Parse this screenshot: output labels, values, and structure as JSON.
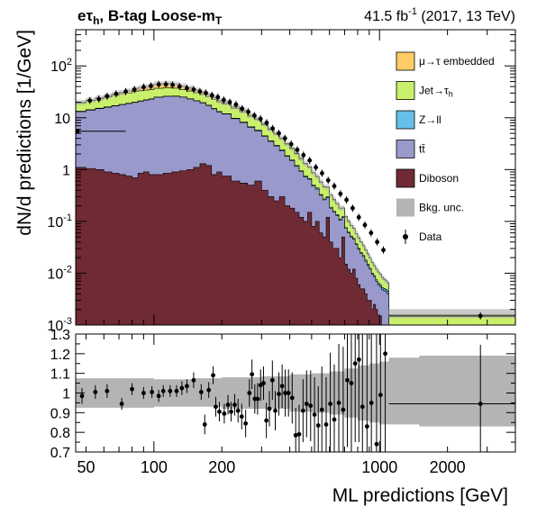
{
  "header": {
    "channel": "eτh, B-tag Loose-mT",
    "channel_main": "e",
    "channel_tau": "τ",
    "channel_tau_sub": "h",
    "channel_rest": ", B-tag Loose-m",
    "channel_rest_sub": "T",
    "lumi": "41.5 fb",
    "lumi_sup": "-1",
    "lumi_rest": " (2017, 13 TeV)"
  },
  "colors": {
    "embedded": "#ffcc66",
    "jetfakes": "#c8f06a",
    "zll": "#64c0e8",
    "ttbar": "#9999cc",
    "diboson": "#6f2a34",
    "unc": "#b4b4b4",
    "data": "#000000"
  },
  "chart_data": [
    {
      "id": "main",
      "type": "area",
      "ylabel": "dN/d predictions [1/GeV]",
      "xscale": "log",
      "yscale": "log",
      "xlim": [
        45,
        4000
      ],
      "ylim": [
        0.001,
        500
      ],
      "yticks": [
        0.001,
        0.01,
        0.1,
        1,
        10,
        100
      ],
      "ytick_labels": [
        [
          "10",
          "-3"
        ],
        [
          "10",
          "-2"
        ],
        [
          "10",
          "-1"
        ],
        [
          "1",
          ""
        ],
        [
          "10",
          ""
        ],
        [
          "10",
          "2"
        ]
      ],
      "x": [
        45,
        50,
        55,
        60,
        65,
        70,
        75,
        80,
        85,
        90,
        95,
        100,
        110,
        120,
        130,
        140,
        150,
        160,
        170,
        180,
        190,
        200,
        220,
        240,
        260,
        280,
        300,
        320,
        340,
        360,
        380,
        400,
        420,
        440,
        460,
        480,
        500,
        520,
        540,
        560,
        580,
        600,
        620,
        640,
        660,
        680,
        700,
        720,
        740,
        760,
        780,
        800,
        820,
        840,
        860,
        880,
        900,
        920,
        940,
        960,
        980,
        1000,
        1020,
        1040,
        1060,
        1080,
        1100
      ],
      "stack": [
        {
          "key": "diboson",
          "name": "Diboson",
          "values": [
            1.1,
            1.05,
            1.0,
            0.9,
            0.85,
            0.8,
            0.75,
            0.7,
            0.85,
            0.9,
            0.8,
            0.8,
            0.85,
            0.9,
            0.95,
            1.0,
            1.1,
            1.3,
            1.2,
            0.8,
            0.9,
            0.75,
            0.6,
            0.55,
            0.5,
            0.6,
            0.4,
            0.3,
            0.25,
            0.3,
            0.2,
            0.18,
            0.15,
            0.12,
            0.1,
            0.15,
            0.08,
            0.1,
            0.06,
            0.05,
            0.12,
            0.04,
            0.03,
            0.03,
            0.02,
            0.05,
            0.015,
            0.012,
            0.01,
            0.012,
            0.008,
            0.006,
            0.005,
            0.005,
            0.004,
            0.003,
            0.003,
            0.002,
            0.0025,
            0.002,
            0.0015,
            0.0015,
            0.001,
            0.001,
            0.001,
            0.001,
            0.001
          ]
        },
        {
          "key": "ttbar",
          "name": "tt̄",
          "values": [
            12,
            13,
            14,
            15,
            16,
            17,
            18,
            19,
            20,
            21,
            22,
            24,
            25,
            25,
            24,
            22,
            20,
            18,
            16,
            14,
            12,
            11,
            9,
            7.5,
            6,
            5,
            4,
            3.2,
            2.6,
            2.0,
            1.6,
            1.3,
            1.0,
            0.8,
            0.62,
            0.5,
            0.4,
            0.32,
            0.26,
            0.21,
            0.17,
            0.14,
            0.12,
            0.1,
            0.085,
            0.07,
            0.058,
            0.048,
            0.04,
            0.033,
            0.028,
            0.023,
            0.019,
            0.016,
            0.013,
            0.011,
            0.009,
            0.0075,
            0.006,
            0.005,
            0.0045,
            0.004,
            0.0038,
            0.0036,
            0.0034,
            0.003,
            0.0028
          ]
        },
        {
          "key": "zll",
          "name": "Z→ll",
          "values": [
            0.3,
            0.3,
            0.3,
            0.3,
            0.3,
            0.3,
            0.3,
            0.3,
            0.3,
            0.3,
            0.3,
            0.3,
            0.3,
            0.3,
            0.3,
            0.3,
            0.3,
            0.3,
            0.3,
            0.3,
            0.3,
            0.2,
            0.2,
            0.2,
            0.2,
            0.2,
            0.1,
            0.1,
            0.1,
            0.1,
            0.05,
            0.05,
            0.05,
            0.03,
            0.03,
            0.02,
            0.02,
            0.02,
            0.01,
            0.01,
            0.01,
            0.008,
            0.006,
            0.005,
            0.004,
            0.003,
            0.003,
            0.002,
            0.002,
            0.002,
            0.001,
            0.001,
            0.001,
            0.001,
            0.001,
            0.001,
            0.0005,
            0.0005,
            0.0005,
            0.0005,
            0.0005,
            0.0005,
            0.0005,
            0.0005,
            0.0005,
            0.0005,
            0.0005
          ]
        },
        {
          "key": "jetfakes",
          "name": "Jet→τh",
          "values": [
            6,
            7,
            8,
            9,
            10,
            11,
            11,
            12,
            12,
            12,
            12,
            12,
            12,
            11,
            10,
            9.5,
            9,
            8.5,
            8,
            7.5,
            7,
            6.5,
            5.5,
            4.8,
            4.0,
            3.4,
            2.8,
            2.3,
            1.9,
            1.55,
            1.25,
            1.0,
            0.82,
            0.66,
            0.54,
            0.44,
            0.36,
            0.29,
            0.24,
            0.19,
            0.155,
            0.13,
            0.105,
            0.085,
            0.07,
            0.057,
            0.047,
            0.038,
            0.031,
            0.026,
            0.021,
            0.018,
            0.015,
            0.012,
            0.01,
            0.0085,
            0.007,
            0.006,
            0.005,
            0.0045,
            0.004,
            0.0035,
            0.003,
            0.0025,
            0.0022,
            0.002,
            0.002
          ]
        },
        {
          "key": "embedded",
          "name": "μ→τ embedded",
          "values": [
            0.5,
            0.6,
            0.8,
            1.0,
            1.5,
            2.0,
            3.0,
            4.0,
            5.0,
            6.0,
            7.0,
            8.0,
            8.0,
            7.0,
            6.0,
            5.0,
            4.0,
            3.0,
            2.5,
            2.0,
            1.5,
            1.2,
            0.9,
            0.7,
            0.5,
            0.4,
            0.3,
            0.22,
            0.16,
            0.12,
            0.09,
            0.07,
            0.05,
            0.04,
            0.03,
            0.022,
            0.017,
            0.013,
            0.01,
            0.008,
            0.006,
            0.005,
            0.004,
            0.003,
            0.0025,
            0.002,
            0.0015,
            0.0012,
            0.001,
            0.0008,
            0.0006,
            0.0005,
            0.0004,
            0.0003,
            0.0003,
            0.0002,
            0.0002,
            0.0002,
            0.0001,
            0.0001,
            0.0001,
            0.0001,
            0.0001,
            0.0001,
            0.0001,
            0.0001,
            0.0001
          ]
        }
      ],
      "tail_bin": {
        "x_range": [
          1100,
          4000
        ],
        "total": 0.0016
      },
      "data_points": [
        [
          52,
          21.5
        ],
        [
          57,
          23
        ],
        [
          62,
          26
        ],
        [
          68,
          29
        ],
        [
          75,
          32
        ],
        [
          82,
          35
        ],
        [
          90,
          39
        ],
        [
          97,
          41
        ],
        [
          105,
          44
        ],
        [
          113,
          44
        ],
        [
          121,
          43
        ],
        [
          130,
          40
        ],
        [
          140,
          37
        ],
        [
          150,
          35
        ],
        [
          160,
          32
        ],
        [
          170,
          30
        ],
        [
          181,
          27
        ],
        [
          192,
          25
        ],
        [
          204,
          22
        ],
        [
          217,
          20
        ],
        [
          231,
          18
        ],
        [
          246,
          15
        ],
        [
          262,
          13
        ],
        [
          279,
          11
        ],
        [
          297,
          9.5
        ],
        [
          316,
          8
        ],
        [
          336,
          6.2
        ],
        [
          358,
          5
        ],
        [
          381,
          4
        ],
        [
          406,
          3.1
        ],
        [
          432,
          2.4
        ],
        [
          460,
          1.9
        ],
        [
          490,
          1.5
        ],
        [
          522,
          1.1
        ],
        [
          556,
          0.85
        ],
        [
          592,
          0.62
        ],
        [
          630,
          0.48
        ],
        [
          671,
          0.34
        ],
        [
          714,
          0.26
        ],
        [
          760,
          0.18
        ],
        [
          809,
          0.12
        ],
        [
          861,
          0.085
        ],
        [
          917,
          0.06
        ],
        [
          976,
          0.04
        ],
        [
          1040,
          0.028
        ],
        [
          2800,
          0.0015
        ]
      ],
      "data_first": {
        "x_range": [
          45,
          75
        ],
        "y": 5.5
      },
      "legend": [
        {
          "key": "embedded",
          "label": "μ→τ embedded",
          "kind": "box"
        },
        {
          "key": "jetfakes",
          "label": "Jet→τh",
          "label_main": "Jet→τ",
          "label_sub": "h",
          "kind": "box"
        },
        {
          "key": "zll",
          "label": "Z→ll",
          "kind": "box"
        },
        {
          "key": "ttbar",
          "label": "tt̄",
          "kind": "box"
        },
        {
          "key": "diboson",
          "label": "Diboson",
          "kind": "box"
        },
        {
          "key": "unc",
          "label": "Bkg. unc.",
          "kind": "box"
        },
        {
          "key": "data",
          "label": "Data",
          "kind": "marker"
        }
      ],
      "legend_position": "top-right"
    },
    {
      "id": "ratio",
      "type": "scatter",
      "xlabel": "ML predictions [GeV]",
      "xscale": "log",
      "xlim": [
        45,
        4000
      ],
      "ylim": [
        0.7,
        1.3
      ],
      "yticks": [
        0.7,
        0.8,
        0.9,
        1,
        1.1,
        1.2,
        1.3
      ],
      "xticks": [
        100,
        200,
        1000,
        2000
      ],
      "unc_band": [
        [
          45,
          0.925,
          1.075
        ],
        [
          100,
          0.93,
          1.07
        ],
        [
          150,
          0.93,
          1.075
        ],
        [
          200,
          0.92,
          1.08
        ],
        [
          300,
          0.92,
          1.085
        ],
        [
          400,
          0.905,
          1.095
        ],
        [
          500,
          0.9,
          1.1
        ],
        [
          600,
          0.89,
          1.11
        ],
        [
          700,
          0.875,
          1.125
        ],
        [
          800,
          0.86,
          1.14
        ],
        [
          900,
          0.85,
          1.15
        ],
        [
          1000,
          0.84,
          1.16
        ],
        [
          1100,
          0.84,
          1.18
        ],
        [
          1500,
          0.83,
          1.19
        ],
        [
          4000,
          0.83,
          1.19
        ]
      ],
      "points": [
        [
          48,
          0.985,
          0.04
        ],
        [
          55,
          1.005,
          0.035
        ],
        [
          62,
          1.01,
          0.035
        ],
        [
          72,
          0.945,
          0.03
        ],
        [
          80,
          1.02,
          0.03
        ],
        [
          90,
          1.0,
          0.03
        ],
        [
          98,
          1.005,
          0.03
        ],
        [
          105,
          0.985,
          0.03
        ],
        [
          110,
          1.01,
          0.03
        ],
        [
          118,
          1.01,
          0.03
        ],
        [
          126,
          1.01,
          0.03
        ],
        [
          133,
          1.025,
          0.035
        ],
        [
          140,
          1.035,
          0.035
        ],
        [
          150,
          1.065,
          0.04
        ],
        [
          162,
          1.005,
          0.04
        ],
        [
          168,
          0.84,
          0.05
        ],
        [
          175,
          1.015,
          0.04
        ],
        [
          183,
          1.09,
          0.045
        ],
        [
          188,
          0.93,
          0.05
        ],
        [
          195,
          0.905,
          0.05
        ],
        [
          205,
          0.895,
          0.05
        ],
        [
          213,
          0.94,
          0.05
        ],
        [
          220,
          0.905,
          0.05
        ],
        [
          228,
          0.94,
          0.055
        ],
        [
          236,
          0.91,
          0.06
        ],
        [
          245,
          0.88,
          0.065
        ],
        [
          255,
          0.845,
          0.07
        ],
        [
          265,
          1.0,
          0.07
        ],
        [
          272,
          1.095,
          0.075
        ],
        [
          280,
          0.97,
          0.075
        ],
        [
          288,
          0.97,
          0.08
        ],
        [
          297,
          1.04,
          0.08
        ],
        [
          306,
          1.05,
          0.085
        ],
        [
          315,
          0.86,
          0.09
        ],
        [
          325,
          0.92,
          0.09
        ],
        [
          335,
          1.065,
          0.1
        ],
        [
          345,
          0.91,
          0.1
        ],
        [
          358,
          0.995,
          0.11
        ],
        [
          370,
          1.035,
          0.11
        ],
        [
          382,
          1.0,
          0.12
        ],
        [
          395,
          1.0,
          0.12
        ],
        [
          410,
          0.975,
          0.13
        ],
        [
          425,
          0.785,
          0.14
        ],
        [
          440,
          0.79,
          0.15
        ],
        [
          458,
          0.91,
          0.16
        ],
        [
          475,
          0.945,
          0.17
        ],
        [
          495,
          0.935,
          0.18
        ],
        [
          515,
          0.89,
          0.19
        ],
        [
          535,
          0.835,
          0.2
        ],
        [
          555,
          0.915,
          0.22
        ],
        [
          580,
          0.84,
          0.24
        ],
        [
          605,
          0.945,
          0.26
        ],
        [
          630,
          0.865,
          0.28
        ],
        [
          660,
          0.95,
          0.3
        ],
        [
          690,
          0.915,
          0.32
        ],
        [
          720,
          1.065,
          0.34
        ],
        [
          750,
          1.05,
          0.36
        ],
        [
          780,
          1.15,
          0.4
        ],
        [
          810,
          1.17,
          0.42
        ],
        [
          840,
          0.93,
          0.45
        ],
        [
          880,
          0.83,
          0.5
        ],
        [
          920,
          0.95,
          0.55
        ],
        [
          970,
          0.74,
          0.6
        ],
        [
          1010,
          0.99,
          0.65
        ],
        [
          1060,
          1.2,
          0.7
        ],
        [
          2800,
          0.945,
          0.3
        ]
      ],
      "wide_point": {
        "x_range": [
          1100,
          4000
        ],
        "y": 0.945
      }
    }
  ]
}
